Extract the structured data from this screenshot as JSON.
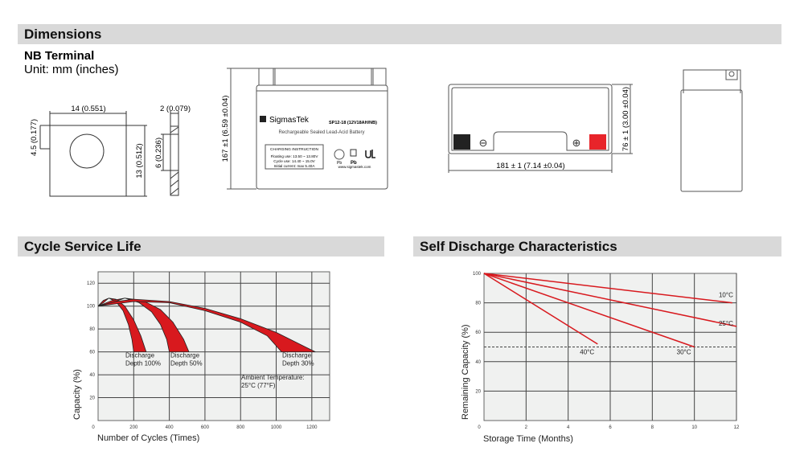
{
  "sections": {
    "dimensions": "Dimensions",
    "cycle": "Cycle Service Life",
    "self_discharge": "Self Discharge Characteristics"
  },
  "terminal": {
    "title": "NB Terminal",
    "unit": "Unit: mm (inches)",
    "width": "14 (0.551)",
    "offset": "4.5 (0.177)",
    "height": "13 (0.512)",
    "thickness": "2 (0.079)",
    "hole": "6 (0.236)"
  },
  "battery": {
    "brand": "SigmasTek",
    "model": "SP12-18 (12V18AH/NB)",
    "subtitle": "Rechargeable Sealed Lead-Acid Battery",
    "charging_title": "CHARGING INSTRUCTION",
    "charging_lines": [
      "Floating use: 13.50 ~ 13.80V",
      "Cycle use: 14.40 ~ 15.0V",
      "Initial current: max 5.40A"
    ],
    "website": "www.sigmastek.com",
    "pb1": "Pb",
    "pb2": "Pb",
    "height": "167 ±1 (6.59 ±0.04)",
    "length": "181 ± 1 (7.14 ±0.04)",
    "width": "76 ± 1 (3.00 ±0.04)",
    "neg_symbol": "⊖",
    "pos_symbol": "⊕",
    "colors": {
      "negative": "#222222",
      "positive": "#e8242a"
    }
  },
  "chart_data": [
    {
      "type": "area",
      "xlabel": "Number of Cycles (Times)",
      "ylabel": "Capacity (%)",
      "xlim": [
        0,
        1300
      ],
      "ylim": [
        0,
        130
      ],
      "xticks": [
        0,
        200,
        400,
        600,
        800,
        1000,
        1200
      ],
      "yticks": [
        0,
        20,
        40,
        60,
        80,
        100,
        120
      ],
      "grid": true,
      "color": "#d8191e",
      "series": [
        {
          "upper": [
            [
              0,
              100
            ],
            [
              30,
              105
            ],
            [
              60,
              107
            ],
            [
              100,
              106
            ],
            [
              150,
              100
            ],
            [
              200,
              88
            ],
            [
              240,
              74
            ],
            [
              270,
              60
            ]
          ],
          "lower": [
            [
              0,
              100
            ],
            [
              30,
              103
            ],
            [
              60,
              107
            ],
            [
              100,
              104
            ],
            [
              140,
              96
            ],
            [
              170,
              84
            ],
            [
              190,
              71
            ],
            [
              200,
              60
            ]
          ],
          "label": [
            "Discharge",
            "Depth 100%"
          ]
        },
        {
          "upper": [
            [
              0,
              100
            ],
            [
              80,
              105
            ],
            [
              150,
              107
            ],
            [
              250,
              105
            ],
            [
              350,
              97
            ],
            [
              420,
              86
            ],
            [
              480,
              71
            ],
            [
              510,
              60
            ]
          ],
          "lower": [
            [
              0,
              100
            ],
            [
              80,
              103
            ],
            [
              150,
              107
            ],
            [
              230,
              103
            ],
            [
              300,
              95
            ],
            [
              350,
              84
            ],
            [
              385,
              71
            ],
            [
              400,
              60
            ]
          ],
          "label": [
            "Discharge",
            "Depth 50%"
          ]
        },
        {
          "upper": [
            [
              0,
              100
            ],
            [
              100,
              104
            ],
            [
              200,
              106
            ],
            [
              400,
              104
            ],
            [
              600,
              98
            ],
            [
              800,
              89
            ],
            [
              1000,
              77
            ],
            [
              1220,
              60
            ]
          ],
          "lower": [
            [
              0,
              100
            ],
            [
              100,
              102
            ],
            [
              200,
              104
            ],
            [
              400,
              103
            ],
            [
              600,
              96
            ],
            [
              800,
              86
            ],
            [
              950,
              74
            ],
            [
              1030,
              60
            ]
          ],
          "label": [
            "Discharge",
            "Depth 30%"
          ]
        }
      ],
      "annotation": [
        "Ambient Temperature:",
        "25°C (77°F)"
      ]
    },
    {
      "type": "line",
      "xlabel": "Storage Time (Months)",
      "ylabel": "Remaining Capacity (%)",
      "xlim": [
        0,
        12
      ],
      "ylim": [
        0,
        100
      ],
      "xticks": [
        0,
        2,
        4,
        6,
        8,
        10,
        12
      ],
      "yticks": [
        0,
        20,
        40,
        60,
        80,
        100
      ],
      "grid": true,
      "color": "#d8191e",
      "reference_line": 50,
      "series": [
        {
          "name": "10°C",
          "points": [
            [
              0,
              100
            ],
            [
              11.8,
              80
            ]
          ]
        },
        {
          "name": "25°C",
          "points": [
            [
              0,
              100
            ],
            [
              12,
              64
            ]
          ]
        },
        {
          "name": "30°C",
          "points": [
            [
              0,
              100
            ],
            [
              10,
              50
            ]
          ]
        },
        {
          "name": "40°C",
          "points": [
            [
              0,
              100
            ],
            [
              5.4,
              52
            ]
          ]
        }
      ]
    }
  ]
}
